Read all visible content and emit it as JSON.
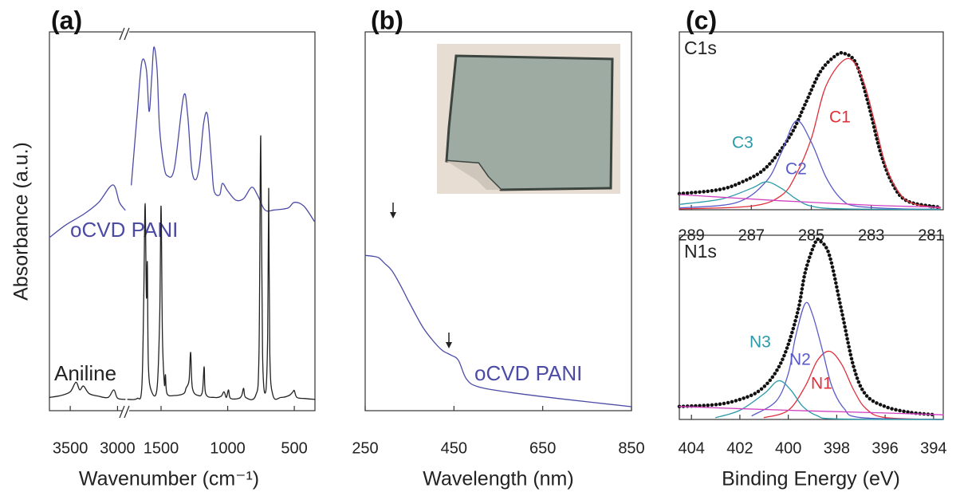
{
  "chart_data": [
    {
      "type": "line",
      "title": "(a)",
      "xlabel": "Wavenumber (cm⁻¹)",
      "ylabel": "Absorbance (a.u.)",
      "xlim": [
        3720,
        345
      ],
      "x_break": [
        2920,
        1750
      ],
      "ylim": [
        0,
        100
      ],
      "xticks": [
        3500,
        3000,
        1500,
        1000,
        500
      ],
      "series": [
        {
          "name": "oCVD PANI",
          "color": "#4b4ba6",
          "x": [
            3720,
            3550,
            3350,
            3200,
            3050,
            2980,
            2920,
            null,
            1723,
            1680,
            1645,
            1610,
            1590,
            1570,
            1554,
            1530,
            1512,
            1480,
            1452,
            1400,
            1331,
            1300,
            1271,
            1240,
            1211,
            1180,
            1151,
            1120,
            1102,
            1060,
            1040,
            1000,
            940,
            880,
            820,
            777,
            720,
            650,
            548,
            500,
            428,
            350
          ],
          "values": [
            45.7,
            49,
            52,
            55,
            59.6,
            55,
            53,
            null,
            59.6,
            78,
            92,
            90,
            79,
            88,
            96,
            90,
            75,
            65,
            62,
            64,
            83,
            78,
            64,
            61,
            65,
            76,
            78,
            65,
            58,
            57,
            60,
            58,
            55.6,
            56,
            59,
            57,
            53,
            53,
            53.5,
            55,
            54,
            50
          ]
        },
        {
          "name": "Aniline",
          "color": "#222222",
          "x": [
            3720,
            3600,
            3500,
            3440,
            3400,
            3360,
            3300,
            3200,
            3100,
            3040,
            3000,
            2920,
            null,
            1750,
            1680,
            1645,
            1630,
            1620,
            1610,
            1603,
            1595,
            1570,
            1530,
            1510,
            1500,
            1490,
            1475,
            1467,
            1455,
            1400,
            1330,
            1312,
            1290,
            1278,
            1265,
            1220,
            1190,
            1176,
            1165,
            1100,
            1050,
            1028,
            1010,
            994,
            980,
            920,
            895,
            880,
            865,
            790,
            765,
            752,
            738,
            715,
            700,
            692,
            684,
            660,
            600,
            540,
            510,
            500,
            480,
            420,
            345
          ],
          "values": [
            3.5,
            4,
            5,
            7.5,
            5.5,
            6.5,
            4.5,
            3.8,
            3.5,
            5.5,
            3.3,
            3,
            null,
            3,
            3.2,
            6,
            30,
            54.7,
            30,
            39,
            12,
            5,
            6,
            25,
            54,
            20,
            7,
            9.5,
            4.5,
            4,
            4.5,
            6,
            8,
            15.4,
            6,
            4,
            5,
            11.6,
            4.5,
            3.5,
            3.8,
            5,
            3.5,
            5.5,
            3.3,
            3.2,
            4,
            5.9,
            3.5,
            4,
            15,
            72.6,
            15,
            5,
            20,
            58.7,
            15,
            4,
            3.5,
            4,
            5,
            5.3,
            3.5,
            3.2,
            3
          ]
        }
      ]
    },
    {
      "type": "line",
      "title": "(b)",
      "xlabel": "Wavelength (nm)",
      "xlim": [
        250,
        850
      ],
      "ylim": [
        0,
        100
      ],
      "xticks": [
        250,
        450,
        650,
        850
      ],
      "series": [
        {
          "name": "oCVD PANI",
          "color": "#4b4ba6",
          "x": [
            250,
            265,
            280,
            293,
            310,
            330,
            350,
            380,
            407,
            425,
            443,
            460,
            478,
            505,
            578,
            686,
            850
          ],
          "values": [
            41,
            40.8,
            40.4,
            39,
            37,
            33,
            28.4,
            22,
            17.9,
            15.8,
            14.7,
            13.3,
            8.4,
            6.3,
            4.8,
            3.2,
            1.05
          ]
        }
      ]
    },
    {
      "type": "line",
      "title": "(c)",
      "subtitle": "C1s",
      "xlim": [
        289.4,
        280.6
      ],
      "ylim": [
        0,
        100
      ],
      "xticks": [
        289,
        287,
        285,
        283,
        281
      ],
      "series": [
        {
          "color": "#111111",
          "marker": "dots",
          "x": [
            289.4,
            288.1,
            287.3,
            286.5,
            285.7,
            285.2,
            284.7,
            284.2,
            283.9,
            283.5,
            283.1,
            282.7,
            282.3,
            281.8,
            280.7
          ],
          "values": [
            9,
            11.2,
            15.7,
            23.8,
            41.7,
            59.6,
            77.6,
            86.5,
            87.9,
            82,
            59.6,
            32.7,
            14.8,
            4.9,
            1.3
          ]
        },
        {
          "name": "C1",
          "color": "#e0303a",
          "x": [
            289.4,
            287,
            286,
            285.5,
            285,
            284.5,
            283.8,
            283.3,
            282.9,
            282.5,
            282,
            281.5,
            280.7
          ],
          "values": [
            0.5,
            2,
            8,
            20,
            40,
            70,
            85,
            74,
            50,
            24,
            8,
            3,
            1
          ]
        },
        {
          "name": "C2",
          "color": "#5a5ac8",
          "x": [
            289.4,
            287.5,
            286.5,
            286,
            285.5,
            285,
            284.5,
            284,
            283.5,
            282,
            280.7
          ],
          "values": [
            1,
            4,
            16,
            32,
            50,
            38,
            18,
            6,
            2,
            0.5,
            0.3
          ]
        },
        {
          "name": "C3",
          "color": "#2a9aa8",
          "x": [
            289.4,
            288,
            287,
            286.5,
            286,
            285.5,
            285,
            284,
            280.7
          ],
          "values": [
            3,
            6,
            12,
            15.7,
            12,
            6,
            2,
            0.5,
            0.2
          ]
        },
        {
          "color": "#d040c0",
          "x": [
            289.4,
            286,
            283,
            280.7
          ],
          "values": [
            8.5,
            5,
            2.5,
            1.5
          ]
        }
      ]
    },
    {
      "type": "line",
      "subtitle": "N1s",
      "xlabel": "Binding Energy (eV)",
      "xlim": [
        404.5,
        393.6
      ],
      "ylim": [
        0,
        100
      ],
      "xticks": [
        404,
        402,
        400,
        398,
        396,
        394
      ],
      "series": [
        {
          "color": "#111111",
          "marker": "dots",
          "x": [
            404.5,
            402.9,
            401.9,
            401.2,
            400.6,
            400.1,
            399.6,
            399.3,
            398.9,
            398.7,
            398.3,
            397.8,
            397.3,
            396.8,
            396,
            395,
            394
          ],
          "values": [
            7,
            8.2,
            11.3,
            15.6,
            24,
            37,
            59,
            80,
            95.7,
            97,
            89,
            59,
            28.6,
            13.4,
            7,
            3.9,
            2.6
          ]
        },
        {
          "name": "N1",
          "color": "#e0303a",
          "x": [
            401,
            400,
            399.3,
            398.8,
            398.3,
            397.8,
            397.3,
            396.8,
            396,
            393.6
          ],
          "values": [
            1,
            5,
            18,
            32,
            37,
            30,
            16,
            6,
            1,
            0
          ]
        },
        {
          "name": "N2",
          "color": "#5a5ac8",
          "x": [
            401.5,
            400.5,
            400,
            399.7,
            399.3,
            399,
            398.6,
            398.2,
            397.7,
            397,
            393.6
          ],
          "values": [
            2,
            10,
            25,
            45,
            63,
            57,
            38,
            18,
            6,
            1,
            0
          ]
        },
        {
          "name": "N3",
          "color": "#2a9aa8",
          "x": [
            403,
            402,
            401,
            400.4,
            399.9,
            399.4,
            398.8,
            398,
            393.6
          ],
          "values": [
            1,
            5,
            14,
            21,
            16,
            7,
            2,
            0.3,
            0
          ]
        },
        {
          "color": "#d040c0",
          "x": [
            404.5,
            400,
            396,
            393.6
          ],
          "values": [
            7,
            5,
            3.5,
            2.5
          ]
        }
      ]
    }
  ]
}
